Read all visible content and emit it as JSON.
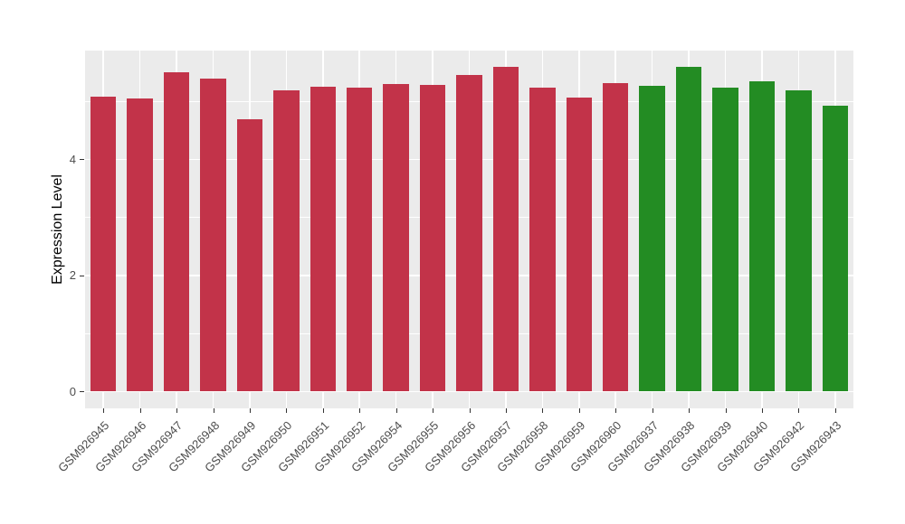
{
  "chart_data": {
    "type": "bar",
    "title": "",
    "xlabel": "",
    "ylabel": "Expression Level",
    "categories": [
      "GSM926945",
      "GSM926946",
      "GSM926947",
      "GSM926948",
      "GSM926949",
      "GSM926950",
      "GSM926951",
      "GSM926952",
      "GSM926954",
      "GSM926955",
      "GSM926956",
      "GSM926957",
      "GSM926958",
      "GSM926959",
      "GSM926960",
      "GSM926937",
      "GSM926938",
      "GSM926939",
      "GSM926940",
      "GSM926942",
      "GSM926943"
    ],
    "values": [
      5.08,
      5.04,
      5.5,
      5.39,
      4.68,
      5.18,
      5.24,
      5.23,
      5.29,
      5.28,
      5.45,
      5.58,
      5.23,
      5.06,
      5.31,
      5.26,
      5.58,
      5.23,
      5.34,
      5.18,
      4.92
    ],
    "groups": [
      "a",
      "a",
      "a",
      "a",
      "a",
      "a",
      "a",
      "a",
      "a",
      "a",
      "a",
      "a",
      "a",
      "a",
      "a",
      "b",
      "b",
      "b",
      "b",
      "b",
      "b"
    ],
    "group_colors": {
      "a": "#C23349",
      "b": "#238C23"
    },
    "yticks": [
      0,
      2,
      4
    ],
    "ytick_labels": [
      "0",
      "2",
      "4"
    ],
    "minor_yticks": [
      1,
      3,
      5
    ],
    "ylim": [
      -0.29,
      5.87
    ],
    "grid": "horizontal major+minor, vertical major at category centers",
    "legend_position": "none",
    "colors": {
      "panel_background": "#EBEBEB",
      "gridline": "#FFFFFF",
      "axis_text": "#4D4D4D",
      "axis_title": "#000000",
      "tick_mark": "#333333",
      "page_background": "#FFFFFF"
    }
  }
}
